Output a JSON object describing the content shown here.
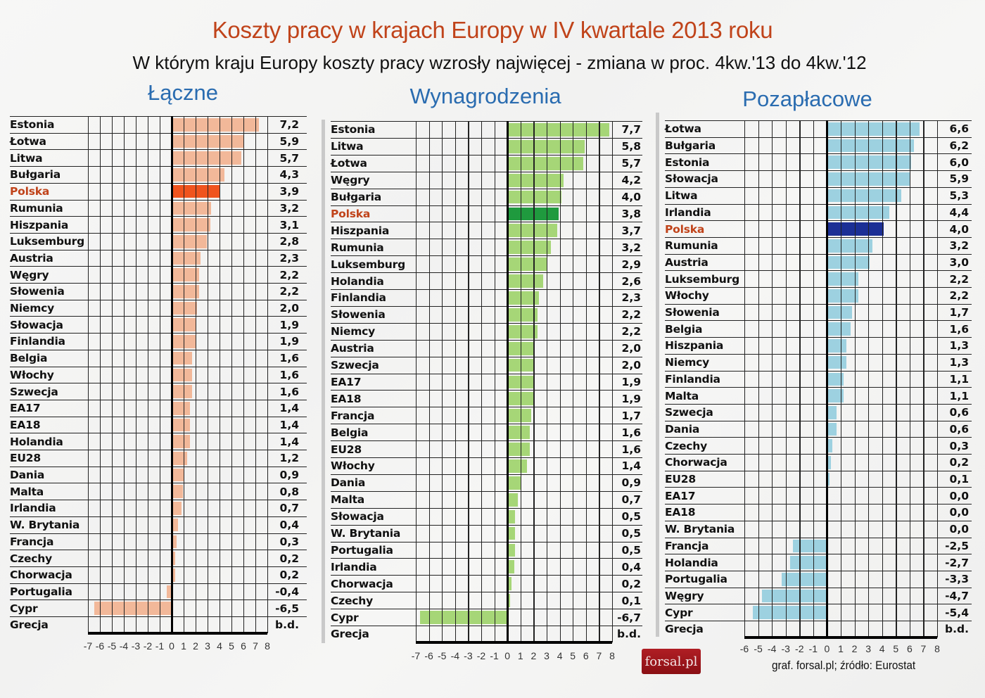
{
  "header": {
    "title": "Koszty pracy w krajach Europy w IV kwartale 2013 roku",
    "subtitle": "W którym kraju Europy koszty pracy wzrosły najwięcej - zmiana w proc. 4kw.'13 do 4kw.'12"
  },
  "footer": {
    "source": "graf. forsal.pl;   źródło: Eurostat",
    "logo": "forsal.pl"
  },
  "colors": {
    "title": "#c0431a",
    "panel_title": "#2a6cb0",
    "highlight_label": "#c0431a",
    "laczne_bar": "#f2b899",
    "laczne_highlight": "#f0541e",
    "wynagrodzenia_bar": "#a6d677",
    "wynagrodzenia_highlight": "#1f9a3e",
    "pozaplacowe_bar": "#9dd1e0",
    "pozaplacowe_highlight": "#1c2f95"
  },
  "chart_data": [
    {
      "type": "bar",
      "orientation": "horizontal",
      "title": "Łączne",
      "xlabel": "",
      "ylabel": "",
      "xlim": [
        -7,
        8
      ],
      "x_ticks": [
        "-7",
        "-6",
        "-5",
        "-4",
        "-3",
        "-2",
        "-1",
        "0",
        "1",
        "2",
        "3",
        "4",
        "5",
        "6",
        "7",
        "8"
      ],
      "grid": true,
      "highlight": "Polska",
      "categories": [
        "Estonia",
        "Łotwa",
        "Litwa",
        "Bułgaria",
        "Polska",
        "Rumunia",
        "Hiszpania",
        "Luksemburg",
        "Austria",
        "Węgry",
        "Słowenia",
        "Niemcy",
        "Słowacja",
        "Finlandia",
        "Belgia",
        "Włochy",
        "Szwecja",
        "EA17",
        "EA18",
        "Holandia",
        "EU28",
        "Dania",
        "Malta",
        "Irlandia",
        "W. Brytania",
        "Francja",
        "Czechy",
        "Chorwacja",
        "Portugalia",
        "Cypr",
        "Grecja"
      ],
      "values": [
        7.2,
        5.9,
        5.7,
        4.3,
        3.9,
        3.2,
        3.1,
        2.8,
        2.3,
        2.2,
        2.2,
        2.0,
        1.9,
        1.9,
        1.6,
        1.6,
        1.6,
        1.4,
        1.4,
        1.4,
        1.2,
        0.9,
        0.8,
        0.7,
        0.4,
        0.3,
        0.2,
        0.2,
        -0.4,
        -6.5,
        null
      ],
      "labels": [
        "7,2",
        "5,9",
        "5,7",
        "4,3",
        "3,9",
        "3,2",
        "3,1",
        "2,8",
        "2,3",
        "2,2",
        "2,2",
        "2,0",
        "1,9",
        "1,9",
        "1,6",
        "1,6",
        "1,6",
        "1,4",
        "1,4",
        "1,4",
        "1,2",
        "0,9",
        "0,8",
        "0,7",
        "0,4",
        "0,3",
        "0,2",
        "0,2",
        "-0,4",
        "-6,5",
        "b.d."
      ]
    },
    {
      "type": "bar",
      "orientation": "horizontal",
      "title": "Wynagrodzenia",
      "xlabel": "",
      "ylabel": "",
      "xlim": [
        -7,
        8
      ],
      "x_ticks": [
        "-7",
        "-6",
        "-5",
        "-4",
        "-3",
        "-2",
        "-1",
        "0",
        "1",
        "2",
        "3",
        "4",
        "5",
        "6",
        "7",
        "8"
      ],
      "grid": true,
      "highlight": "Polska",
      "categories": [
        "Estonia",
        "Litwa",
        "Łotwa",
        "Węgry",
        "Bułgaria",
        "Polska",
        "Hiszpania",
        "Rumunia",
        "Luksemburg",
        "Holandia",
        "Finlandia",
        "Słowenia",
        "Niemcy",
        "Austria",
        "Szwecja",
        "EA17",
        "EA18",
        "Francja",
        "Belgia",
        "EU28",
        "Włochy",
        "Dania",
        "Malta",
        "Słowacja",
        "W. Brytania",
        "Portugalia",
        "Irlandia",
        "Chorwacja",
        "Czechy",
        "Cypr",
        "Grecja"
      ],
      "values": [
        7.7,
        5.8,
        5.7,
        4.2,
        4.0,
        3.8,
        3.7,
        3.2,
        2.9,
        2.6,
        2.3,
        2.2,
        2.2,
        2.0,
        2.0,
        1.9,
        1.9,
        1.7,
        1.6,
        1.6,
        1.4,
        0.9,
        0.7,
        0.5,
        0.5,
        0.5,
        0.4,
        0.2,
        0.1,
        -6.7,
        null
      ],
      "labels": [
        "7,7",
        "5,8",
        "5,7",
        "4,2",
        "4,0",
        "3,8",
        "3,7",
        "3,2",
        "2,9",
        "2,6",
        "2,3",
        "2,2",
        "2,2",
        "2,0",
        "2,0",
        "1,9",
        "1,9",
        "1,7",
        "1,6",
        "1,6",
        "1,4",
        "0,9",
        "0,7",
        "0,5",
        "0,5",
        "0,5",
        "0,4",
        "0,2",
        "0,1",
        "-6,7",
        "b.d."
      ]
    },
    {
      "type": "bar",
      "orientation": "horizontal",
      "title": "Pozapłacowe",
      "xlabel": "",
      "ylabel": "",
      "xlim": [
        -6,
        8
      ],
      "x_ticks": [
        "-6",
        "-5",
        "-4",
        "-3",
        "-2",
        "-1",
        "0",
        "1",
        "2",
        "3",
        "4",
        "5",
        "6",
        "7",
        "8"
      ],
      "grid": true,
      "highlight": "Polska",
      "categories": [
        "Łotwa",
        "Bułgaria",
        "Estonia",
        "Słowacja",
        "Litwa",
        "Irlandia",
        "Polska",
        "Rumunia",
        "Austria",
        "Luksemburg",
        "Włochy",
        "Słowenia",
        "Belgia",
        "Hiszpania",
        "Niemcy",
        "Finlandia",
        "Malta",
        "Szwecja",
        "Dania",
        "Czechy",
        "Chorwacja",
        "EU28",
        "EA17",
        "EA18",
        "W. Brytania",
        "Francja",
        "Holandia",
        "Portugalia",
        "Węgry",
        "Cypr",
        "Grecja"
      ],
      "values": [
        6.6,
        6.2,
        6.0,
        5.9,
        5.3,
        4.4,
        4.0,
        3.2,
        3.0,
        2.2,
        2.2,
        1.7,
        1.6,
        1.3,
        1.3,
        1.1,
        1.1,
        0.6,
        0.6,
        0.3,
        0.2,
        0.1,
        0.0,
        0.0,
        0.0,
        -2.5,
        -2.7,
        -3.3,
        -4.7,
        -5.4,
        null
      ],
      "labels": [
        "6,6",
        "6,2",
        "6,0",
        "5,9",
        "5,3",
        "4,4",
        "4,0",
        "3,2",
        "3,0",
        "2,2",
        "2,2",
        "1,7",
        "1,6",
        "1,3",
        "1,3",
        "1,1",
        "1,1",
        "0,6",
        "0,6",
        "0,3",
        "0,2",
        "0,1",
        "0,0",
        "0,0",
        "0,0",
        "-2,5",
        "-2,7",
        "-3,3",
        "-4,7",
        "-5,4",
        "b.d."
      ]
    }
  ]
}
